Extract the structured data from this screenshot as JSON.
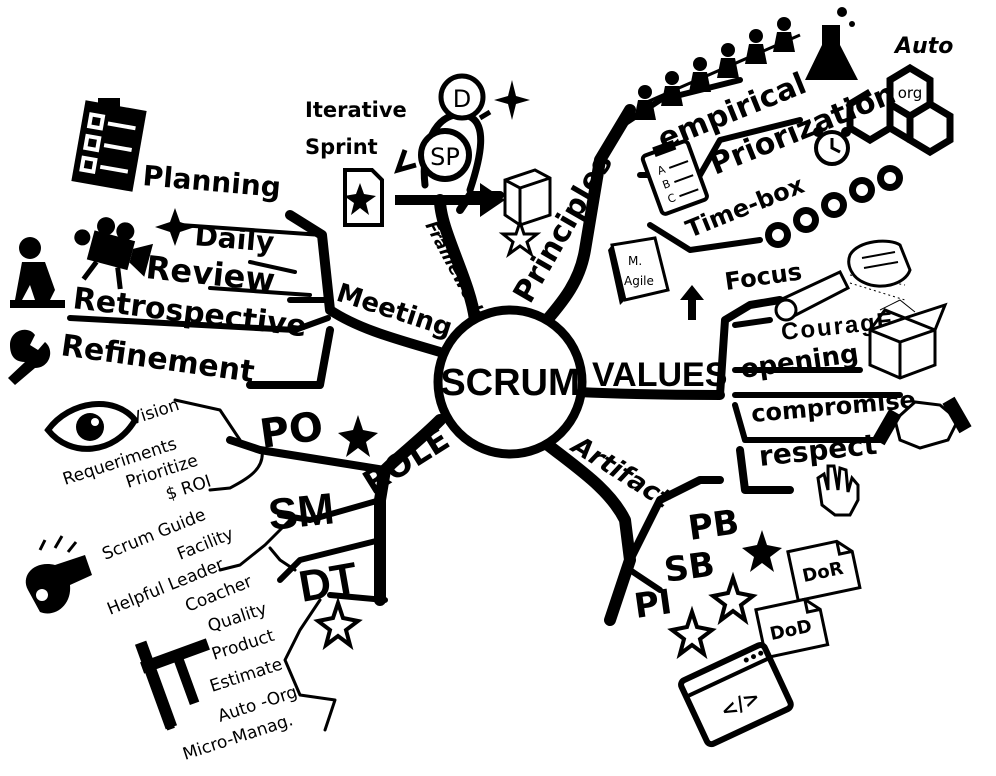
{
  "center": "SCRUM",
  "branches": {
    "meeting": "Meeting",
    "framework": "Framework",
    "principles": "Principles",
    "values": "VALUES",
    "artifact": "Artifact",
    "role": "ROLE"
  },
  "meetings": [
    "Planning",
    "Daily",
    "Review",
    "Retrospective",
    "Refinement"
  ],
  "framework": {
    "iterative": "Iterative",
    "sprint": "Sprint",
    "sp": "SP",
    "d": "D"
  },
  "principles": {
    "empirical": "empirical",
    "priorization": "Priorization",
    "timebox": "Time-box",
    "auto": "Auto",
    "org": "org",
    "book_line1": "M.",
    "book_line2": "Agile",
    "clipboard": [
      "A",
      "B",
      "C"
    ]
  },
  "values": [
    "Focus",
    "CouragE",
    "opening",
    "compromise",
    "respect"
  ],
  "artifacts": {
    "items": [
      "PB",
      "SB",
      "PI"
    ],
    "dor": "DoR",
    "dod": "DoD"
  },
  "roles": {
    "po": "PO",
    "sm": "SM",
    "dt": "DT",
    "po_items": [
      "Vision",
      "Requeriments",
      "Prioritize",
      "$ ROI"
    ],
    "sm_items": [
      "Scrum Guide",
      "Facility",
      "Helpful Leader",
      "Coacher"
    ],
    "dt_items": [
      "Quality",
      "Product",
      "Estimate",
      "Auto -Org",
      "Micro-Manag."
    ]
  },
  "icons": [
    "checklist-icon",
    "star-icon",
    "video-camera-icon",
    "thinker-icon",
    "wrench-icon",
    "eye-icon",
    "whistle-icon",
    "caliper-icon",
    "people-chain-icon",
    "flask-icon",
    "clipboard-icon",
    "alarm-clock-icon",
    "hexagon-org-icon",
    "cycle-arrows-icon",
    "book-icon",
    "flashlight-icon",
    "fist-icon",
    "open-box-icon",
    "handshake-icon",
    "hand-icon",
    "document-icon",
    "code-window-icon",
    "cube-icon"
  ]
}
